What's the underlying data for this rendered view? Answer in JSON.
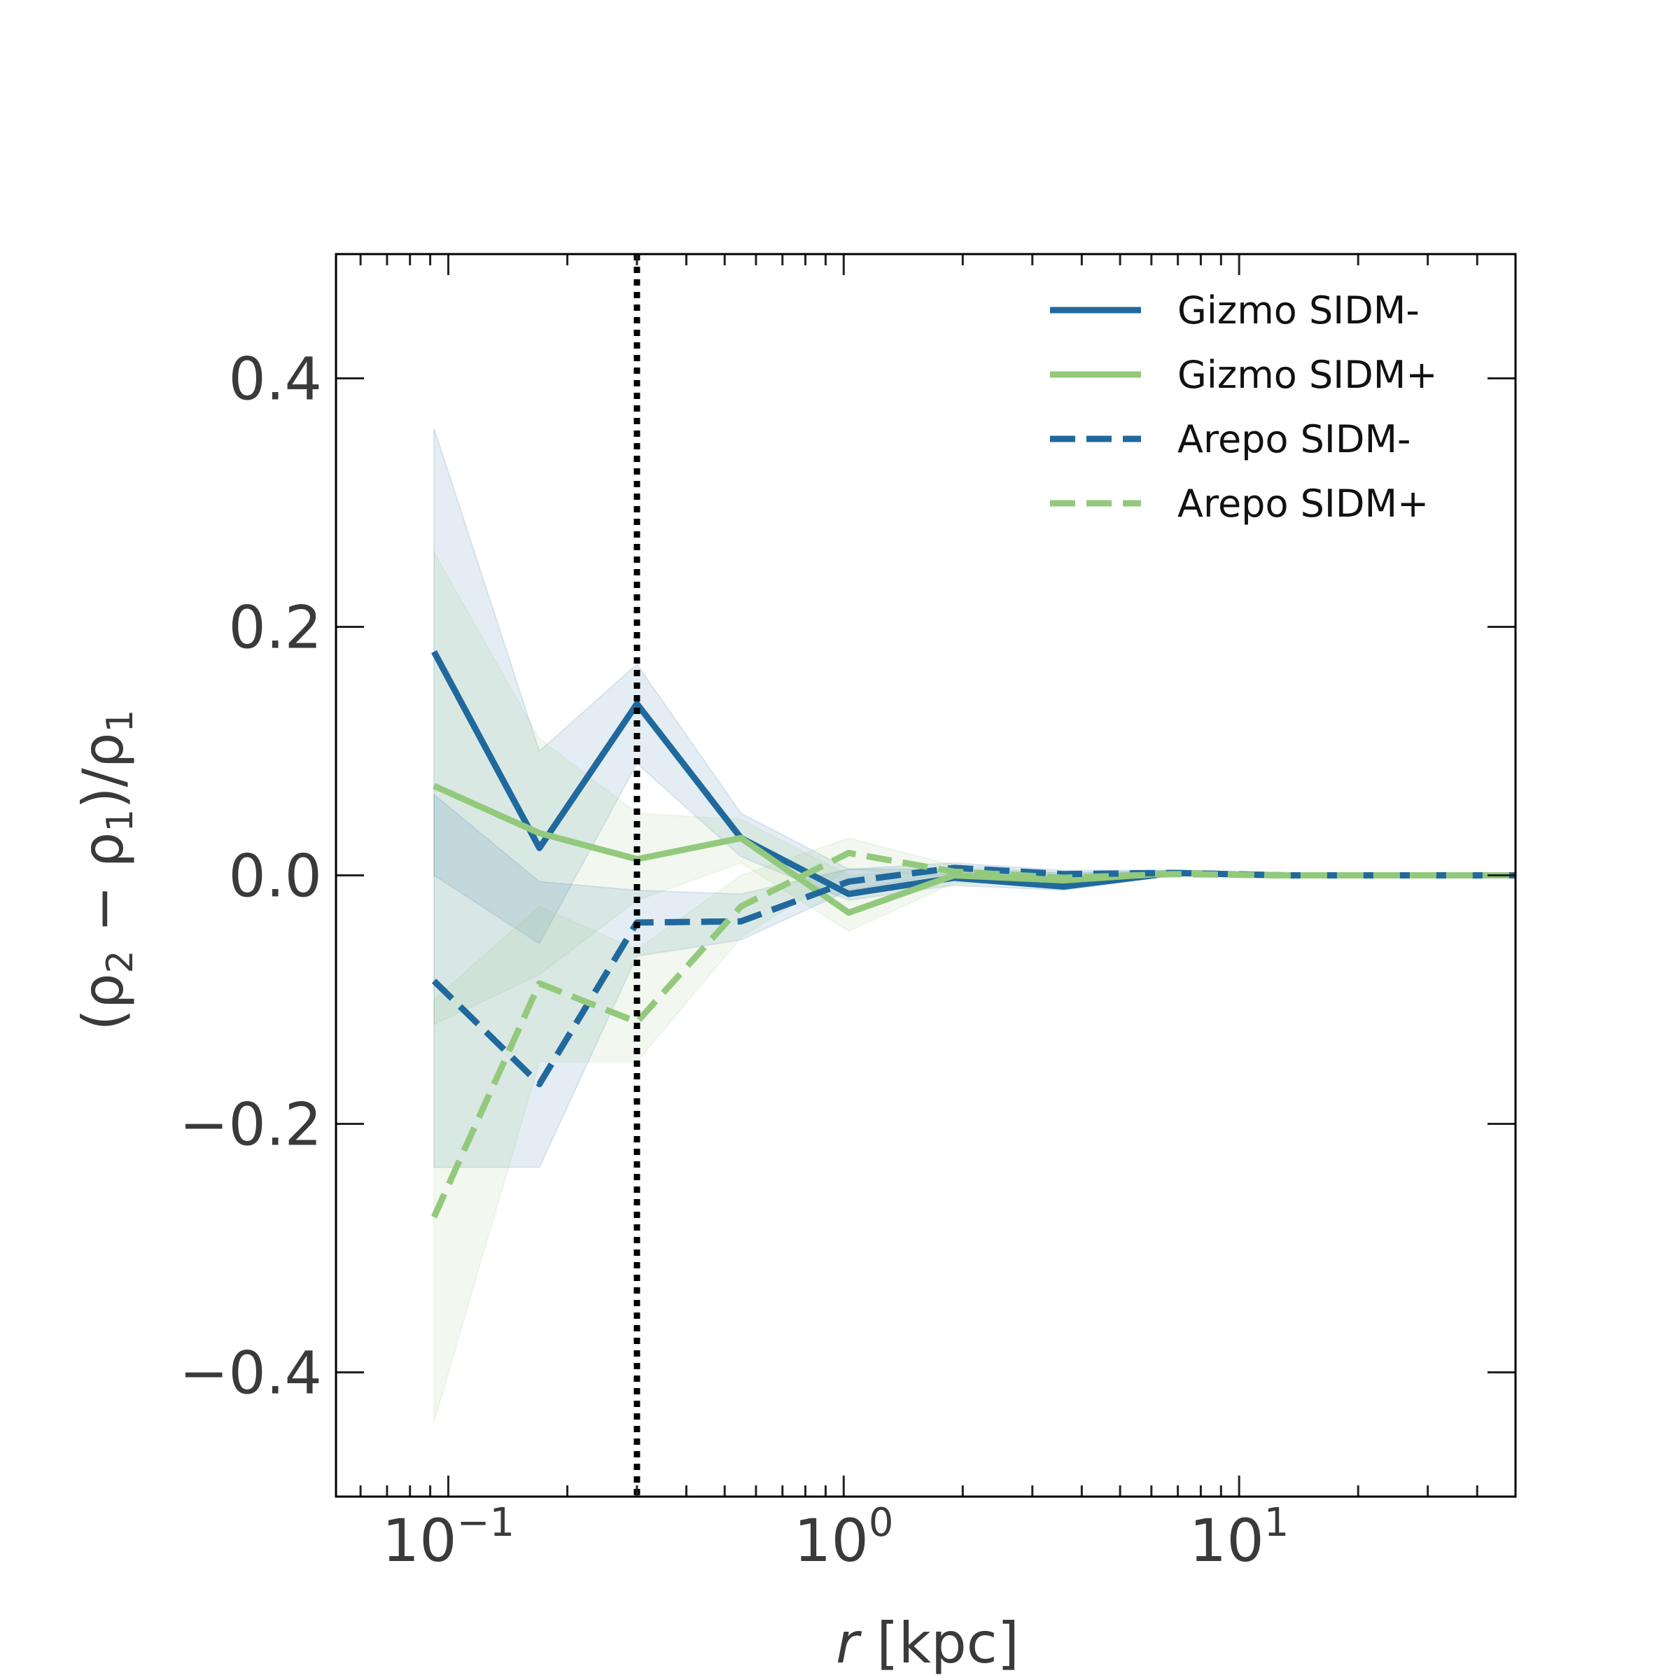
{
  "chart_data": {
    "type": "line",
    "title": "",
    "xlabel": "r [kpc]",
    "xlabel_italic_part": "r",
    "xlabel_rest": " [kpc]",
    "ylabel": "(ρ2 − ρ1)/ρ1",
    "ylabel_parts": {
      "open": "(ρ",
      "sub2": "2",
      "minus": " − ρ",
      "sub1": "1",
      "close": ")/ρ",
      "sub1b": "1"
    },
    "xscale": "log",
    "xlim": [
      0.052,
      50
    ],
    "ylim": [
      -0.5,
      0.5
    ],
    "x_tick_labels": [
      {
        "value": 0.1,
        "base": "10",
        "exp": "−1"
      },
      {
        "value": 1,
        "base": "10",
        "exp": "0"
      },
      {
        "value": 10,
        "base": "10",
        "exp": "1"
      }
    ],
    "y_tick_labels": [
      {
        "value": 0.4,
        "label": "0.4"
      },
      {
        "value": 0.2,
        "label": "0.2"
      },
      {
        "value": 0.0,
        "label": "0.0"
      },
      {
        "value": -0.2,
        "label": "−0.2"
      },
      {
        "value": -0.4,
        "label": "−0.4"
      }
    ],
    "vline": {
      "x": 0.3,
      "style": "dotted",
      "color": "#000000"
    },
    "legend_position": "top-right",
    "series": [
      {
        "name": "Gizmo SIDM-",
        "color": "#20699d",
        "dash": "solid",
        "x": [
          0.092,
          0.17,
          0.3,
          0.55,
          1.03,
          1.9,
          3.6,
          6.8,
          13,
          25,
          50
        ],
        "values": [
          0.18,
          0.022,
          0.138,
          0.03,
          -0.015,
          -0.002,
          -0.009,
          0.002,
          0.0,
          0.0,
          0.0
        ],
        "band_upper": [
          0.36,
          0.1,
          0.17,
          0.05,
          0.005,
          0.005,
          0.002,
          0.004,
          0.001,
          0.001,
          0.001
        ],
        "band_lower": [
          -0.0,
          -0.055,
          0.09,
          0.015,
          -0.02,
          -0.008,
          -0.012,
          0.0,
          -0.001,
          -0.001,
          -0.001
        ]
      },
      {
        "name": "Gizmo SIDM+",
        "color": "#93c97c",
        "dash": "solid",
        "x": [
          0.092,
          0.17,
          0.3,
          0.55,
          1.03,
          1.9,
          3.6,
          6.8,
          13,
          25,
          50
        ],
        "values": [
          0.072,
          0.034,
          0.013,
          0.03,
          -0.03,
          0.0,
          -0.004,
          0.002,
          0.0,
          0.0,
          0.0
        ],
        "band_upper": [
          0.26,
          0.11,
          0.05,
          0.045,
          0.0,
          0.005,
          0.0,
          0.004,
          0.001,
          0.001,
          0.001
        ],
        "band_lower": [
          -0.12,
          -0.08,
          -0.02,
          0.01,
          -0.045,
          -0.006,
          -0.008,
          0.0,
          -0.001,
          -0.001,
          -0.001
        ]
      },
      {
        "name": "Arepo SIDM-",
        "color": "#20699d",
        "dash": "dashed",
        "x": [
          0.092,
          0.17,
          0.3,
          0.55,
          1.03,
          1.9,
          3.6,
          6.8,
          13,
          25,
          50
        ],
        "values": [
          -0.085,
          -0.168,
          -0.038,
          -0.037,
          -0.005,
          0.006,
          0.001,
          0.002,
          0.0,
          0.0,
          0.0
        ],
        "band_upper": [
          0.065,
          -0.005,
          -0.012,
          -0.015,
          0.005,
          0.01,
          0.004,
          0.004,
          0.001,
          0.001,
          0.001
        ],
        "band_lower": [
          -0.235,
          -0.235,
          -0.065,
          -0.052,
          -0.012,
          0.002,
          -0.002,
          0.0,
          -0.001,
          -0.001,
          -0.001
        ]
      },
      {
        "name": "Arepo SIDM+",
        "color": "#93c97c",
        "dash": "dashed",
        "x": [
          0.092,
          0.17,
          0.3,
          0.55,
          1.03,
          1.9,
          3.6,
          6.8,
          13,
          25,
          50
        ],
        "values": [
          -0.275,
          -0.087,
          -0.118,
          -0.025,
          0.018,
          0.003,
          -0.002,
          0.001,
          0.0,
          0.0,
          0.0
        ],
        "band_upper": [
          -0.1,
          -0.025,
          -0.06,
          0.0,
          0.03,
          0.008,
          0.002,
          0.003,
          0.001,
          0.001,
          0.001
        ],
        "band_lower": [
          -0.44,
          -0.15,
          -0.15,
          -0.05,
          0.005,
          -0.002,
          -0.005,
          0.0,
          -0.001,
          -0.001,
          -0.001
        ]
      }
    ]
  }
}
